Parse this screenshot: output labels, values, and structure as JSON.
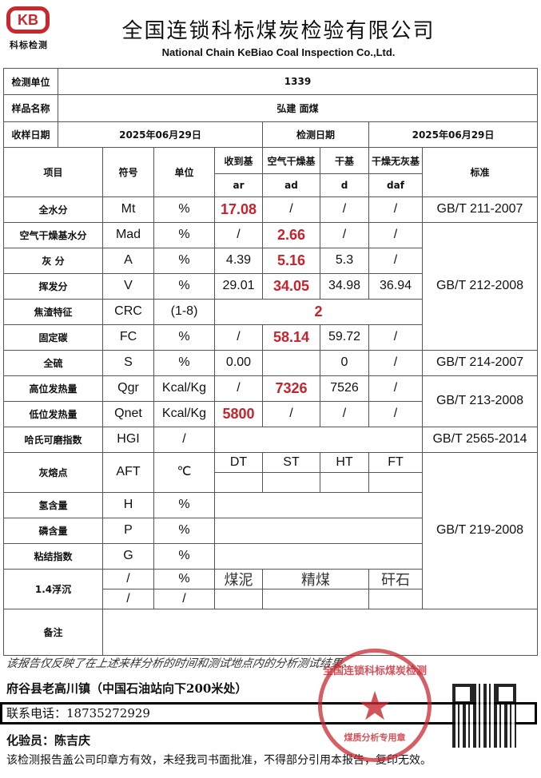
{
  "header": {
    "logo_mark": "KB",
    "logo_text": "科标检测",
    "company_cn": "全国连锁科标煤炭检验有限公司",
    "company_en": "National Chain KeBiao Coal Inspection Co.,Ltd."
  },
  "info": {
    "unit_label": "检测单位",
    "unit_value": "1339",
    "sample_label": "样品名称",
    "sample_value": "弘建 面煤",
    "recv_label": "收样日期",
    "recv_value": "2025年06月29日",
    "test_label": "检测日期",
    "test_value": "2025年06月29日"
  },
  "columns": {
    "item": "项目",
    "symbol": "符号",
    "unit": "单位",
    "ar_cn": "收到基",
    "ad_cn": "空气干燥基",
    "d_cn": "干基",
    "daf_cn": "干燥无灰基",
    "ar": "ar",
    "ad": "ad",
    "d": "d",
    "daf": "daf",
    "standard": "标准"
  },
  "rows": [
    {
      "item": "全水分",
      "symbol": "Mt",
      "unit": "%",
      "ar": "17.08",
      "ad": "/",
      "d": "/",
      "daf": "/",
      "highlight": "ar"
    },
    {
      "item": "空气干燥基水分",
      "symbol": "Mad",
      "unit": "%",
      "ar": "/",
      "ad": "2.66",
      "d": "/",
      "daf": "/",
      "highlight": "ad"
    },
    {
      "item": "灰 分",
      "symbol": "A",
      "unit": "%",
      "ar": "4.39",
      "ad": "5.16",
      "d": "5.3",
      "daf": "/",
      "highlight": "ad"
    },
    {
      "item": "挥发分",
      "symbol": "V",
      "unit": "%",
      "ar": "29.01",
      "ad": "34.05",
      "d": "34.98",
      "daf": "36.94",
      "highlight": "ad"
    },
    {
      "item": "焦渣特征",
      "symbol": "CRC",
      "unit": "(1-8)",
      "value": "2",
      "highlight": "value"
    },
    {
      "item": "固定碳",
      "symbol": "FC",
      "unit": "%",
      "ar": "/",
      "ad": "58.14",
      "d": "59.72",
      "daf": "/",
      "highlight": "ad"
    },
    {
      "item": "全硫",
      "symbol": "S",
      "unit": "%",
      "ar": "0.00",
      "ad": "",
      "d": "0",
      "daf": "/"
    },
    {
      "item": "高位发热量",
      "symbol": "Qgr",
      "unit": "Kcal/Kg",
      "ar": "/",
      "ad": "7326",
      "d": "7526",
      "daf": "/",
      "highlight": "ad"
    },
    {
      "item": "低位发热量",
      "symbol": "Qnet",
      "unit": "Kcal/Kg",
      "ar": "5800",
      "ad": "/",
      "d": "/",
      "daf": "/",
      "highlight": "ar"
    }
  ],
  "hgi": {
    "item": "哈氏可磨指数",
    "symbol": "HGI",
    "unit": "/"
  },
  "aft": {
    "item": "灰熔点",
    "symbol": "AFT",
    "unit": "℃",
    "sub": [
      "DT",
      "ST",
      "HT",
      "FT"
    ]
  },
  "extra_rows": [
    {
      "item": "氢含量",
      "symbol": "H",
      "unit": "%"
    },
    {
      "item": "磷含量",
      "symbol": "P",
      "unit": "%"
    },
    {
      "item": "粘结指数",
      "symbol": "G",
      "unit": "%"
    }
  ],
  "float_sink": {
    "item": "1.4浮沉",
    "symbol1": "/",
    "unit1": "%",
    "symbol2": "/",
    "unit2": "/",
    "sub": [
      "煤泥",
      "精煤",
      "矸石"
    ]
  },
  "remarks_label": "备注",
  "standards": [
    "GB/T 211-2007",
    "GB/T 212-2008",
    "GB/T 214-2007",
    "GB/T 213-2008",
    "GB/T 2565-2014",
    "GB/T 219-2008"
  ],
  "footer": {
    "disclaimer": "该报告仅反映了在上述来样分析的时间和测试地点内的分析测试结果。",
    "address": "府谷县老高川镇（中国石油站向下200米处）",
    "phone": "联系电话：18735272929",
    "inspector": "化验员：陈吉庆",
    "note": "该检测报告盖公司印章方有效，未经我司书面批准，不得部分引用本报告，复印无效。"
  },
  "stamp": {
    "top_text": "全国连锁科标煤炭检测",
    "bottom_text": "煤质分析专用章",
    "color": "#c8282d"
  },
  "colors": {
    "highlight": "#c8232c",
    "brand": "#c8282d"
  }
}
